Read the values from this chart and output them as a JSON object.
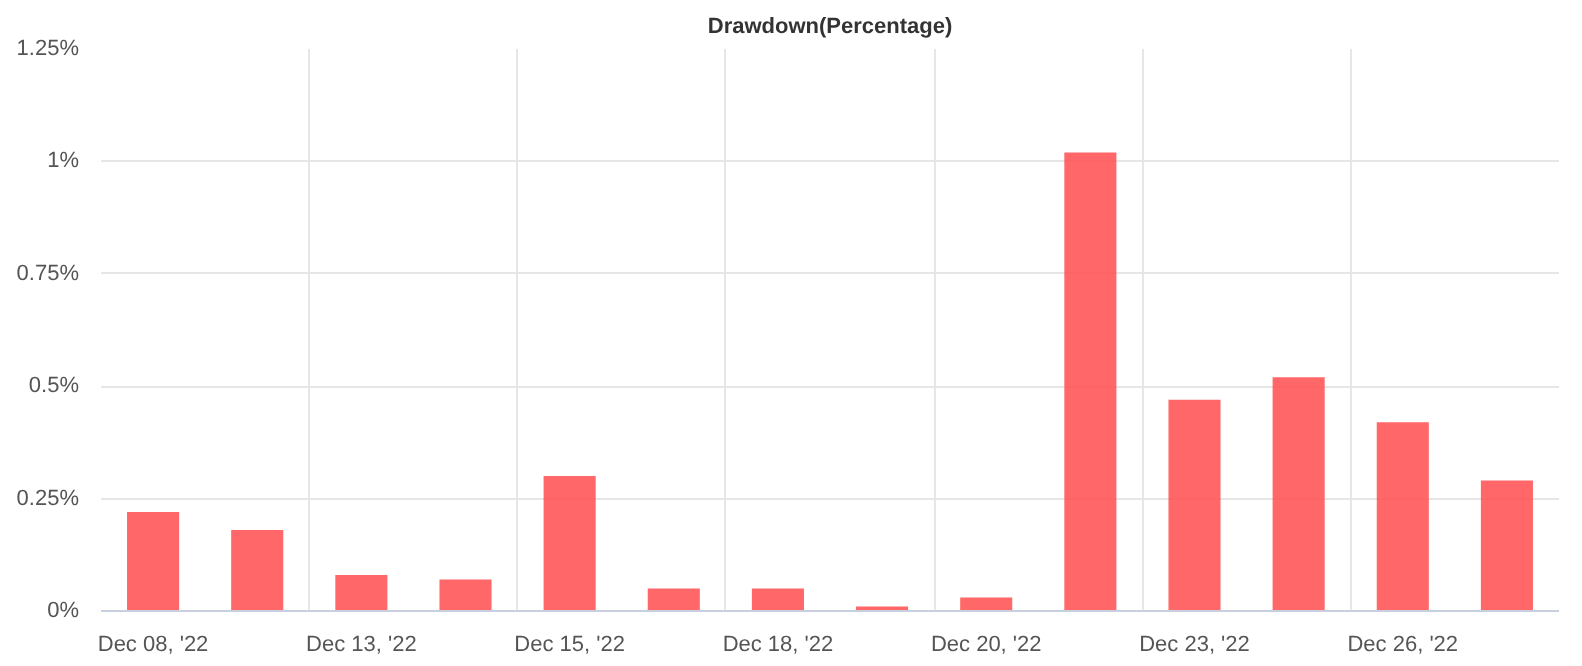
{
  "chart_data": {
    "type": "bar",
    "title": "Drawdown(Percentage)",
    "categories": [
      "Dec 08, '22",
      null,
      "Dec 13, '22",
      null,
      "Dec 15, '22",
      null,
      "Dec 18, '22",
      null,
      "Dec 20, '22",
      null,
      "Dec 23, '22",
      null,
      "Dec 26, '22",
      null
    ],
    "values": [
      0.22,
      0.18,
      0.08,
      0.07,
      0.3,
      0.05,
      0.05,
      0.01,
      0.03,
      1.02,
      0.47,
      0.52,
      0.42,
      0.29
    ],
    "color": "#ff4c4e",
    "ylim": [
      0,
      1.25
    ],
    "yticks": [
      {
        "value": 0,
        "label": "0%"
      },
      {
        "value": 0.25,
        "label": "0.25%"
      },
      {
        "value": 0.5,
        "label": "0.5%"
      },
      {
        "value": 0.75,
        "label": "0.75%"
      },
      {
        "value": 1,
        "label": "1%"
      },
      {
        "value": 1.25,
        "label": "1.25%"
      }
    ],
    "grid": true
  }
}
